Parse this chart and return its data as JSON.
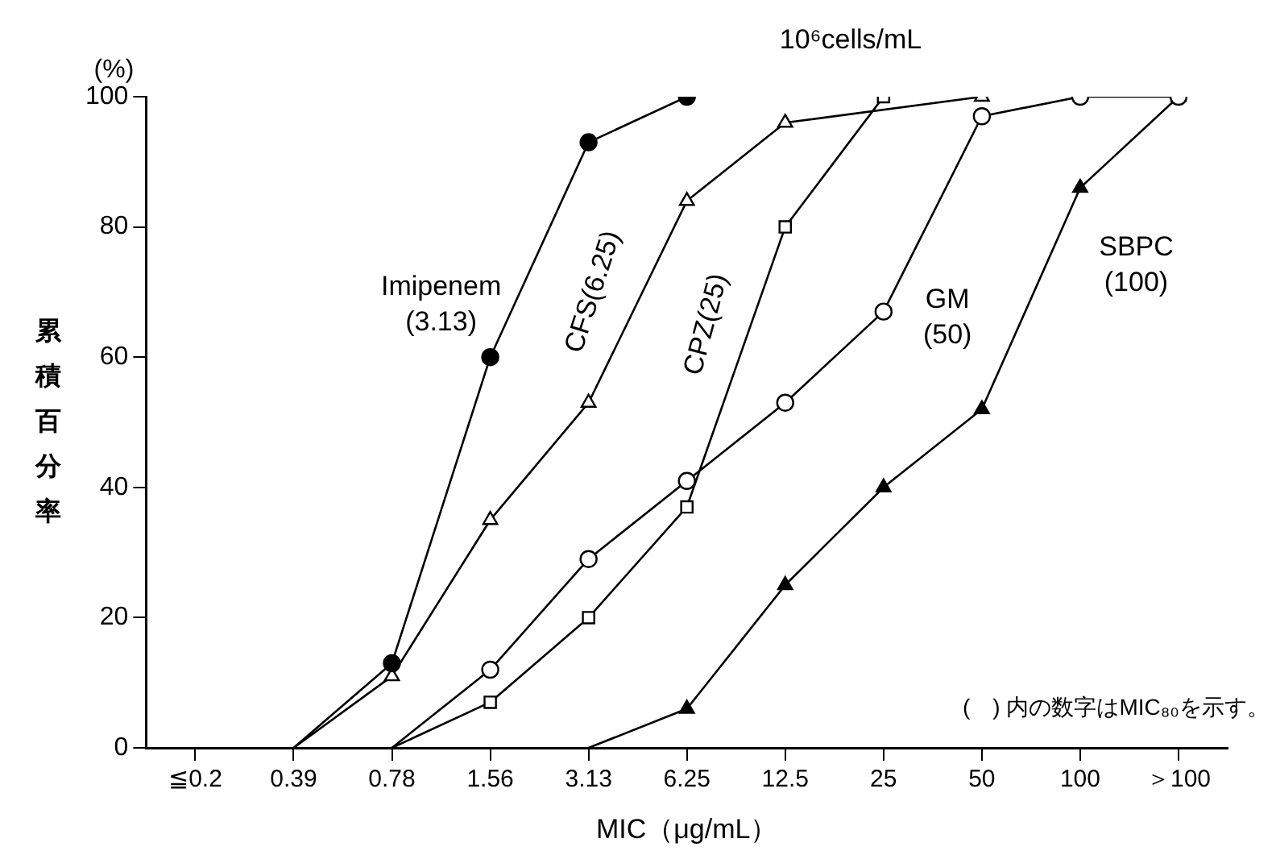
{
  "chart_data": {
    "type": "line",
    "title": "10⁶cells/mL",
    "xlabel": "MIC（μg/mL）",
    "ylabel": "累積百分率",
    "categories": [
      "≦0.2",
      "0.39",
      "0.78",
      "1.56",
      "3.13",
      "6.25",
      "12.5",
      "25",
      "50",
      "100",
      "＞100"
    ],
    "series": [
      {
        "name": "Imipenem (3.13)",
        "color": "#000000",
        "marker": "circle",
        "values": [
          null,
          0,
          13,
          60,
          93,
          100,
          null,
          null,
          null,
          null,
          null
        ]
      },
      {
        "name": "CFS(6.25)",
        "color": "#000000",
        "marker": "triangle",
        "values": [
          null,
          0,
          11,
          35,
          53,
          84,
          96,
          null,
          100,
          null,
          null
        ]
      },
      {
        "name": "CPZ(25)",
        "color": "#000000",
        "marker": "square",
        "values": [
          null,
          null,
          0,
          7,
          20,
          37,
          80,
          100,
          null,
          null,
          null
        ]
      },
      {
        "name": "GM (50)",
        "color": "#000000",
        "marker": "circle",
        "values": [
          null,
          null,
          0,
          12,
          29,
          41,
          53,
          67,
          97,
          100,
          100
        ]
      },
      {
        "name": "SBPC (100)",
        "color": "#000000",
        "marker": "triangle",
        "values": [
          null,
          null,
          null,
          null,
          0,
          6,
          25,
          40,
          52,
          86,
          100
        ]
      }
    ],
    "ylim": [
      0,
      100
    ],
    "yticks": [
      0,
      20,
      40,
      60,
      80,
      100
    ],
    "grid": false,
    "legend": false,
    "line_style": "solid",
    "annotations": [
      "(%)",
      "(　) 内の数字はMIC₈₀を示す。"
    ]
  }
}
